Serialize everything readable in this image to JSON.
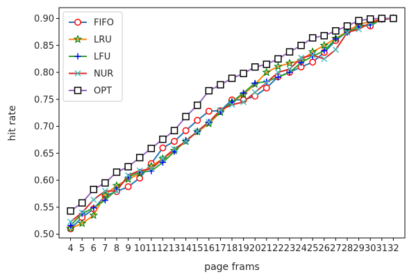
{
  "chart_data": {
    "type": "line",
    "xlabel": "page frams",
    "ylabel": "hit rate",
    "ylim": [
      0.493,
      0.92
    ],
    "xlim": [
      3,
      33
    ],
    "grid": false,
    "legend_position": "top-left",
    "x": [
      4,
      5,
      6,
      7,
      8,
      9,
      10,
      11,
      12,
      13,
      14,
      15,
      16,
      17,
      18,
      19,
      20,
      21,
      22,
      23,
      24,
      25,
      26,
      27,
      28,
      29,
      30,
      31,
      32
    ],
    "x_ticks": [
      4,
      5,
      6,
      7,
      8,
      9,
      10,
      11,
      12,
      13,
      14,
      15,
      16,
      17,
      18,
      19,
      20,
      21,
      22,
      23,
      24,
      25,
      26,
      27,
      28,
      29,
      30,
      31,
      32
    ],
    "y_ticks": [
      "0.50",
      "0.55",
      "0.60",
      "0.65",
      "0.70",
      "0.75",
      "0.80",
      "0.85",
      "0.90"
    ],
    "series": [
      {
        "name": "FIFO",
        "color": "#1f77b4",
        "marker": "circle",
        "marker_color": "#ff0000",
        "values": [
          0.51,
          0.531,
          0.547,
          0.571,
          0.579,
          0.588,
          0.604,
          0.631,
          0.66,
          0.672,
          0.692,
          0.711,
          0.728,
          0.729,
          0.749,
          0.749,
          0.756,
          0.771,
          0.792,
          0.8,
          0.81,
          0.819,
          0.837,
          0.859,
          0.876,
          0.888,
          0.886,
          0.899,
          0.9
        ]
      },
      {
        "name": "LRU",
        "color": "#ff7f0e",
        "marker": "star",
        "marker_color": "#008000",
        "values": [
          0.511,
          0.52,
          0.535,
          0.573,
          0.59,
          0.602,
          0.612,
          0.626,
          0.64,
          0.655,
          0.672,
          0.69,
          0.705,
          0.726,
          0.745,
          0.759,
          0.778,
          0.8,
          0.811,
          0.817,
          0.822,
          0.838,
          0.85,
          0.863,
          0.876,
          0.889,
          0.894,
          0.899,
          0.9
        ]
      },
      {
        "name": "LFU",
        "color": "#2ca02c",
        "marker": "plus",
        "marker_color": "#0000ff",
        "values": [
          0.516,
          0.538,
          0.549,
          0.563,
          0.583,
          0.606,
          0.615,
          0.617,
          0.633,
          0.653,
          0.674,
          0.69,
          0.708,
          0.727,
          0.745,
          0.762,
          0.78,
          0.783,
          0.791,
          0.8,
          0.818,
          0.83,
          0.84,
          0.862,
          0.874,
          0.884,
          0.888,
          0.898,
          0.9
        ]
      },
      {
        "name": "NUR",
        "color": "#d62728",
        "marker": "x",
        "marker_color": "#40c0c0",
        "values": [
          0.523,
          0.54,
          0.564,
          0.58,
          0.58,
          0.609,
          0.618,
          0.621,
          0.64,
          0.658,
          0.672,
          0.691,
          0.708,
          0.73,
          0.74,
          0.745,
          0.763,
          0.781,
          0.8,
          0.806,
          0.827,
          0.832,
          0.825,
          0.842,
          0.874,
          0.88,
          0.892,
          0.898,
          0.9
        ]
      },
      {
        "name": "OPT",
        "color": "#9467bd",
        "marker": "square",
        "marker_color": "#000000",
        "values": [
          0.543,
          0.558,
          0.583,
          0.595,
          0.615,
          0.625,
          0.642,
          0.659,
          0.676,
          0.692,
          0.718,
          0.739,
          0.766,
          0.777,
          0.789,
          0.798,
          0.81,
          0.815,
          0.825,
          0.838,
          0.85,
          0.864,
          0.868,
          0.877,
          0.886,
          0.896,
          0.899,
          0.9,
          0.9
        ]
      }
    ]
  }
}
